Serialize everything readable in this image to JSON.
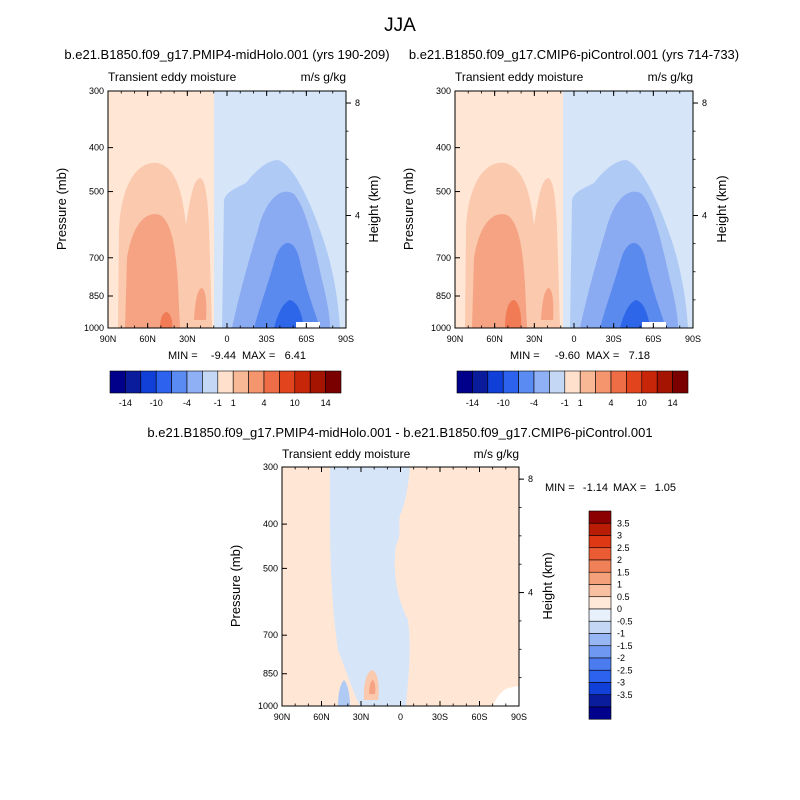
{
  "page": {
    "title": "JJA"
  },
  "chart_data": [
    {
      "type": "heatmap",
      "title": "b.e21.B1850.f09_g17.PMIP4-midHolo.001 (yrs 190-209)",
      "left_label": "Transient eddy moisture",
      "right_label": "m/s g/kg",
      "xlabel": "",
      "ylabel": "Pressure (mb)",
      "y2label": "Height (km)",
      "x_ticks": [
        "90N",
        "60N",
        "30N",
        "0",
        "30S",
        "60S",
        "90S"
      ],
      "y_ticks": [
        "300",
        "400",
        "500",
        "700",
        "850",
        "1000"
      ],
      "y_tick_values": [
        300,
        400,
        500,
        700,
        850,
        1000
      ],
      "y2_ticks": [
        "8",
        "4"
      ],
      "y2_tick_values": [
        8,
        4
      ],
      "ylim": [
        1000,
        300
      ],
      "y_scale": "log",
      "stats": {
        "min_label": "MIN =",
        "min": "-9.44",
        "max_label": "MAX =",
        "max": "6.41"
      },
      "colorbar": {
        "orientation": "horizontal",
        "labels": [
          "-14",
          "-10",
          "-4",
          "-1",
          "1",
          "4",
          "10",
          "14"
        ]
      }
    },
    {
      "type": "heatmap",
      "title": "b.e21.B1850.f09_g17.CMIP6-piControl.001 (yrs 714-733)",
      "left_label": "Transient eddy moisture",
      "right_label": "m/s g/kg",
      "xlabel": "",
      "ylabel": "Pressure (mb)",
      "y2label": "Height (km)",
      "x_ticks": [
        "90N",
        "60N",
        "30N",
        "0",
        "30S",
        "60S",
        "90S"
      ],
      "y_ticks": [
        "300",
        "400",
        "500",
        "700",
        "850",
        "1000"
      ],
      "y_tick_values": [
        300,
        400,
        500,
        700,
        850,
        1000
      ],
      "y2_ticks": [
        "8",
        "4"
      ],
      "y2_tick_values": [
        8,
        4
      ],
      "ylim": [
        1000,
        300
      ],
      "y_scale": "log",
      "stats": {
        "min_label": "MIN =",
        "min": "-9.60",
        "max_label": "MAX =",
        "max": "7.18"
      },
      "colorbar": {
        "orientation": "horizontal",
        "labels": [
          "-14",
          "-10",
          "-4",
          "-1",
          "1",
          "4",
          "10",
          "14"
        ]
      }
    },
    {
      "type": "heatmap",
      "title": "b.e21.B1850.f09_g17.PMIP4-midHolo.001 - b.e21.B1850.f09_g17.CMIP6-piControl.001",
      "left_label": "Transient eddy moisture",
      "right_label": "m/s g/kg",
      "xlabel": "",
      "ylabel": "Pressure (mb)",
      "y2label": "Height (km)",
      "x_ticks": [
        "90N",
        "60N",
        "30N",
        "0",
        "30S",
        "60S",
        "90S"
      ],
      "y_ticks": [
        "300",
        "400",
        "500",
        "700",
        "850",
        "1000"
      ],
      "y_tick_values": [
        300,
        400,
        500,
        700,
        850,
        1000
      ],
      "y2_ticks": [
        "8",
        "4"
      ],
      "y2_tick_values": [
        8,
        4
      ],
      "ylim": [
        1000,
        300
      ],
      "y_scale": "log",
      "stats": {
        "min_label": "MIN =",
        "min": "-1.14",
        "max_label": "MAX =",
        "max": "1.05"
      },
      "colorbar": {
        "orientation": "vertical",
        "labels": [
          "3.5",
          "3",
          "2.5",
          "2",
          "1.5",
          "1",
          "0.5",
          "0",
          "-0.5",
          "-1",
          "-1.5",
          "-2",
          "-2.5",
          "-3",
          "-3.5"
        ]
      }
    }
  ],
  "colors": {
    "hbar": [
      "#00008b",
      "#0a1c9c",
      "#1040d8",
      "#2c62ee",
      "#5a8bf2",
      "#8fb0f4",
      "#c4d8f6",
      "#ffe0cc",
      "#f8b896",
      "#f4956e",
      "#ee6c46",
      "#e2441e",
      "#c82608",
      "#a51400",
      "#7a0000"
    ],
    "vbar": [
      "#00008b",
      "#0a1c9c",
      "#1040d8",
      "#2c62ee",
      "#4a7cf0",
      "#6e98f2",
      "#96b6f4",
      "#c4d8f6",
      "#e8f0fc",
      "#ffe8d8",
      "#f8c0a0",
      "#f4a07a",
      "#f08058",
      "#ec5c34",
      "#de3814",
      "#b81c04",
      "#8b0000"
    ],
    "pos1": "#ffe6d5",
    "pos2": "#fac9ae",
    "pos3": "#f5a383",
    "pos4": "#f07b55",
    "pos5": "#e55127",
    "neg1": "#d6e6f8",
    "neg2": "#afcaf5",
    "neg3": "#8aaaf2",
    "neg4": "#5b8aee",
    "neg5": "#2d66e8"
  }
}
